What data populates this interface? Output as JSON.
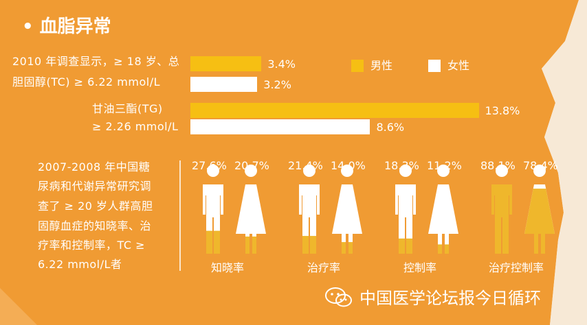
{
  "title": "• 血脂异常",
  "colors": {
    "background": "#f09b33",
    "male": "#f6bf13",
    "female": "#ffffff",
    "fill_gold": "#efb72c"
  },
  "legend": [
    {
      "label": "男性",
      "color": "#f6bf13"
    },
    {
      "label": "女性",
      "color": "#ffffff"
    }
  ],
  "bar_section": {
    "groups": [
      {
        "label_lines": [
          "2010 年调查显示，≥ 18 岁、总",
          "胆固醇(TC) ≥ 6.22 mmol/L"
        ],
        "bars": [
          {
            "series": "男性",
            "value": 3.4,
            "label": "3.4%"
          },
          {
            "series": "女性",
            "value": 3.2,
            "label": "3.2%"
          }
        ]
      },
      {
        "label_lines": [
          "甘油三酯(TG)",
          "≥ 2.26 mmol/L"
        ],
        "bars": [
          {
            "series": "男性",
            "value": 13.8,
            "label": "13.8%"
          },
          {
            "series": "女性",
            "value": 8.6,
            "label": "8.6%"
          }
        ]
      }
    ]
  },
  "figure_section": {
    "desc_lines": [
      "2007-2008 年中国糖",
      "尿病和代谢异常研究调",
      "查了 ≥ 20 岁人群高胆",
      "固醇血症的知晓率、治",
      "疗率和控制率，TC ≥",
      "6.22 mmol/L者"
    ],
    "groups": [
      {
        "label": "知晓率",
        "male": 27.6,
        "female": 20.7,
        "male_label": "27.6%",
        "female_label": "20.7%"
      },
      {
        "label": "治疗率",
        "male": 21.4,
        "female": 14.0,
        "male_label": "21.4%",
        "female_label": "14.0%"
      },
      {
        "label": "控制率",
        "male": 18.3,
        "female": 11.2,
        "male_label": "18.3%",
        "female_label": "11.2%"
      },
      {
        "label": "治疗控制率",
        "male": 88.1,
        "female": 78.4,
        "male_label": "88.1%",
        "female_label": "78.4%"
      }
    ]
  },
  "chart_data": [
    {
      "type": "bar",
      "title": "",
      "categories": [
        "总胆固醇(TC) ≥ 6.22 mmol/L",
        "甘油三酯(TG) ≥ 2.26 mmol/L"
      ],
      "series": [
        {
          "name": "男性",
          "values": [
            3.4,
            13.8
          ]
        },
        {
          "name": "女性",
          "values": [
            3.2,
            8.6
          ]
        }
      ],
      "unit": "%",
      "orientation": "horizontal",
      "legend": "top-right"
    },
    {
      "type": "bar",
      "title": "",
      "categories": [
        "知晓率",
        "治疗率",
        "控制率",
        "治疗控制率"
      ],
      "series": [
        {
          "name": "男性",
          "values": [
            27.6,
            21.4,
            18.3,
            88.1
          ]
        },
        {
          "name": "女性",
          "values": [
            20.7,
            14.0,
            11.2,
            78.4
          ]
        }
      ],
      "unit": "%",
      "encoding": "pictograph fill level"
    }
  ],
  "watermark": "中国医学论坛报今日循环"
}
